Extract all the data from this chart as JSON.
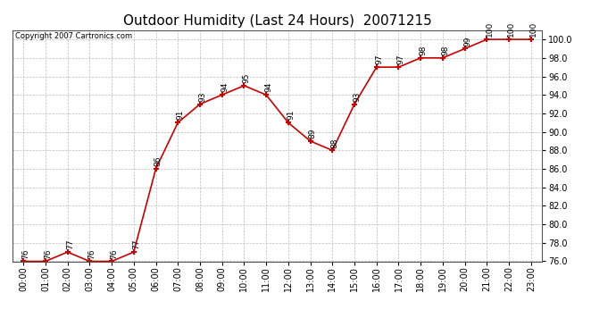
{
  "title": "Outdoor Humidity (Last 24 Hours)  20071215",
  "copyright": "Copyright 2007 Cartronics.com",
  "hours": [
    0,
    1,
    2,
    3,
    4,
    5,
    6,
    7,
    8,
    9,
    10,
    11,
    12,
    13,
    14,
    15,
    16,
    17,
    18,
    19,
    20,
    21,
    22,
    23
  ],
  "values": [
    76,
    76,
    77,
    76,
    76,
    77,
    86,
    91,
    93,
    94,
    95,
    94,
    91,
    89,
    88,
    93,
    97,
    97,
    98,
    98,
    99,
    100,
    100,
    100
  ],
  "xlabels": [
    "00:00",
    "01:00",
    "02:00",
    "03:00",
    "04:00",
    "05:00",
    "06:00",
    "07:00",
    "08:00",
    "09:00",
    "10:00",
    "11:00",
    "12:00",
    "13:00",
    "14:00",
    "15:00",
    "16:00",
    "17:00",
    "18:00",
    "19:00",
    "20:00",
    "21:00",
    "22:00",
    "23:00"
  ],
  "ylim": [
    76,
    101
  ],
  "yticks": [
    76.0,
    78.0,
    80.0,
    82.0,
    84.0,
    86.0,
    88.0,
    90.0,
    92.0,
    94.0,
    96.0,
    98.0,
    100.0
  ],
  "line_color": "#cc0000",
  "marker_color": "#cc0000",
  "bg_color": "#ffffff",
  "grid_color": "#bbbbbb",
  "title_fontsize": 11,
  "label_fontsize": 7,
  "annotation_fontsize": 6.5
}
